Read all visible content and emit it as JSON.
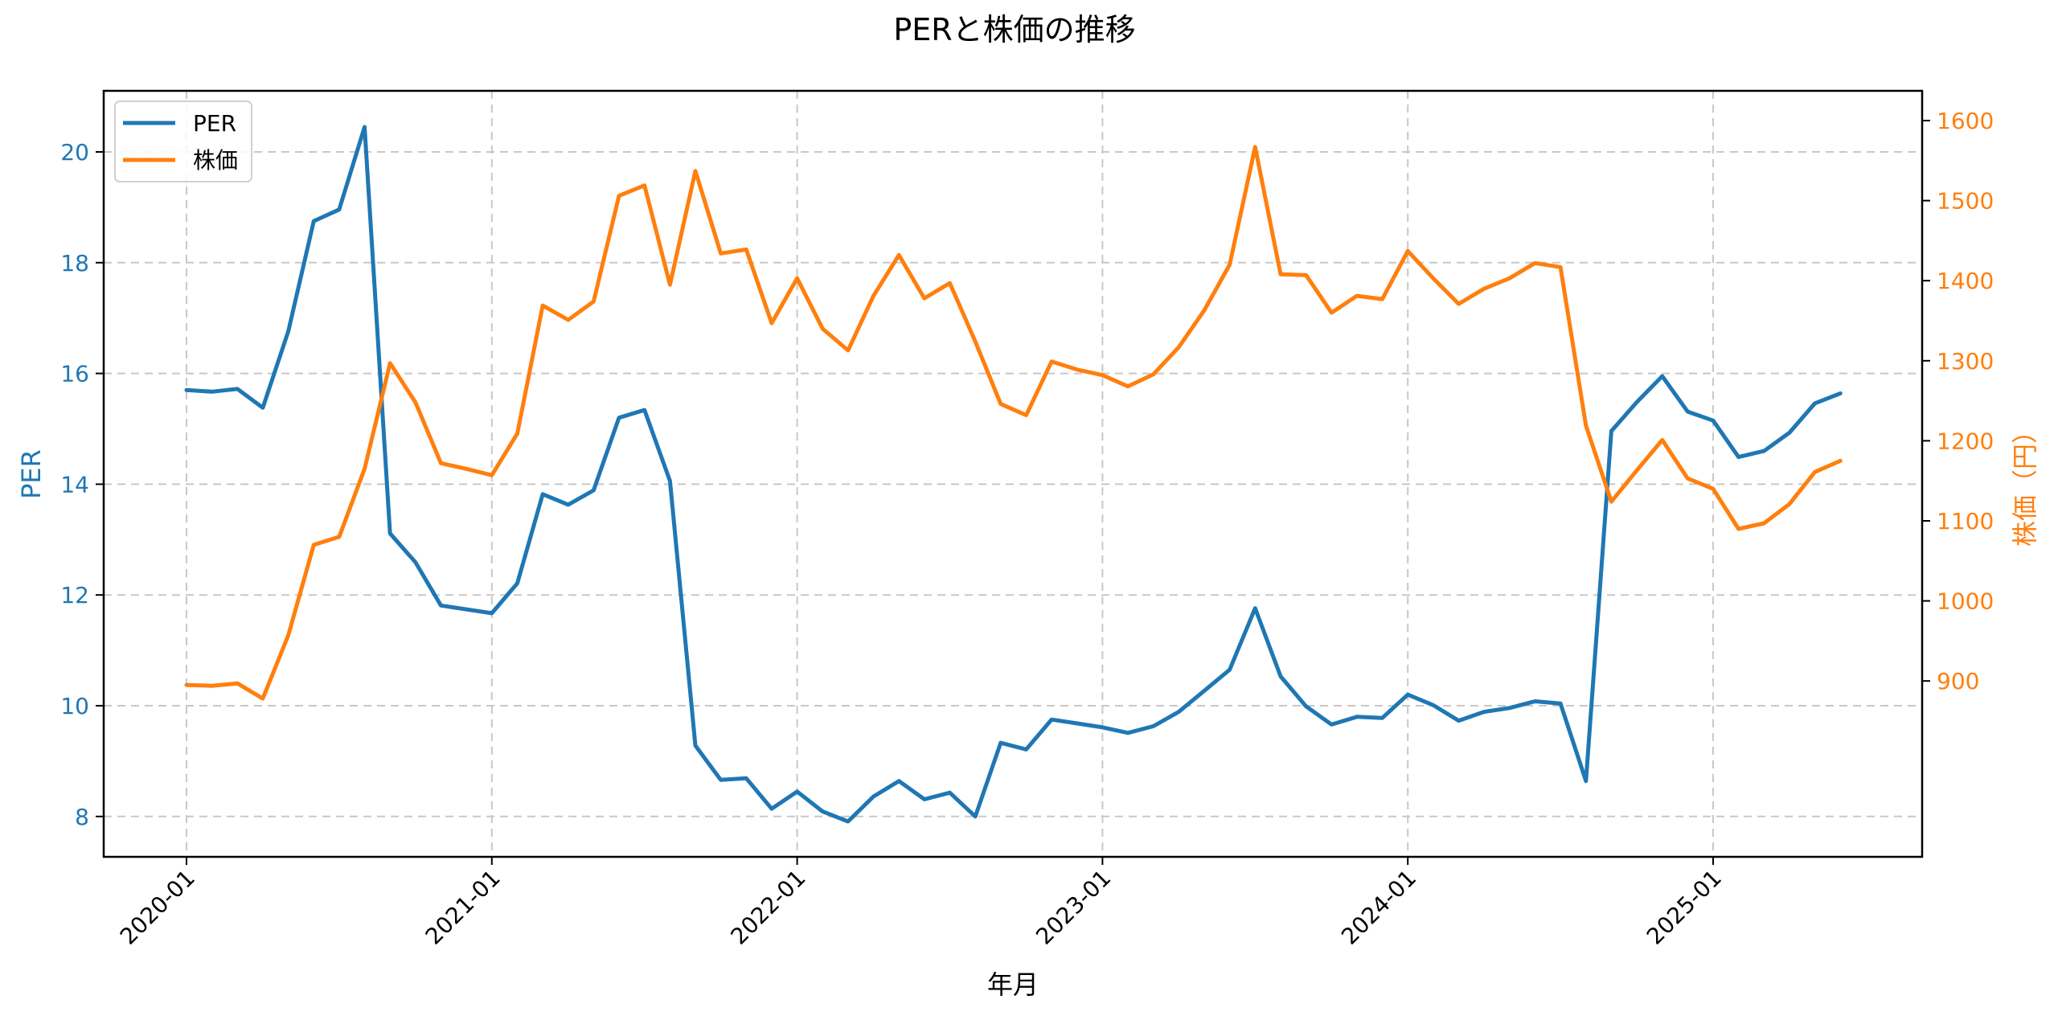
{
  "chart_data": {
    "type": "line",
    "title": "PERと株価の推移",
    "xlabel": "年月",
    "ylabel": "PER",
    "ylabel_right": "株価（円）",
    "x_tick_labels": [
      "2020-01",
      "2021-01",
      "2022-01",
      "2023-01",
      "2024-01",
      "2025-01"
    ],
    "y_ticks_left": [
      8,
      10,
      12,
      14,
      16,
      18,
      20
    ],
    "y_ticks_right": [
      900,
      1000,
      1100,
      1200,
      1300,
      1400,
      1500,
      1600
    ],
    "ylim_left": [
      7.3,
      21.1
    ],
    "ylim_right": [
      810,
      1650
    ],
    "grid": true,
    "legend_position": "upper left",
    "x": [
      "2020-01",
      "2020-02",
      "2020-03",
      "2020-04",
      "2020-05",
      "2020-06",
      "2020-07",
      "2020-08",
      "2020-09",
      "2020-10",
      "2020-11",
      "2020-12",
      "2021-01",
      "2021-02",
      "2021-03",
      "2021-04",
      "2021-05",
      "2021-06",
      "2021-07",
      "2021-08",
      "2021-09",
      "2021-10",
      "2021-11",
      "2021-12",
      "2022-01",
      "2022-02",
      "2022-03",
      "2022-04",
      "2022-05",
      "2022-06",
      "2022-07",
      "2022-08",
      "2022-09",
      "2022-10",
      "2022-11",
      "2022-12",
      "2023-01",
      "2023-02",
      "2023-03",
      "2023-04",
      "2023-05",
      "2023-06",
      "2023-07",
      "2023-08",
      "2023-09",
      "2023-10",
      "2023-11",
      "2023-12",
      "2024-01",
      "2024-02",
      "2024-03",
      "2024-04",
      "2024-05",
      "2024-06",
      "2024-07",
      "2024-08",
      "2024-09",
      "2024-10",
      "2024-11",
      "2024-12",
      "2025-01",
      "2025-02",
      "2025-03",
      "2025-04",
      "2025-05",
      "2025-06"
    ],
    "series": [
      {
        "name": "PER",
        "axis": "left",
        "color": "#1f77b4",
        "values": [
          15.7,
          15.67,
          15.72,
          15.38,
          16.76,
          18.75,
          18.96,
          20.45,
          13.11,
          12.59,
          11.81,
          11.74,
          11.67,
          12.21,
          13.82,
          13.63,
          13.89,
          15.2,
          15.34,
          14.06,
          9.28,
          8.66,
          8.69,
          8.14,
          8.45,
          8.09,
          7.91,
          8.36,
          8.64,
          8.31,
          8.43,
          8.0,
          9.33,
          9.21,
          9.75,
          9.68,
          9.61,
          9.51,
          9.63,
          9.89,
          10.27,
          10.65,
          11.76,
          10.53,
          9.99,
          9.66,
          9.8,
          9.78,
          10.2,
          10.01,
          9.73,
          9.89,
          9.96,
          10.08,
          10.04,
          8.64,
          14.96,
          15.48,
          15.95,
          15.31,
          15.15,
          14.49,
          14.6,
          14.93,
          15.46,
          15.64
        ]
      },
      {
        "name": "株価",
        "axis": "right",
        "color": "#ff7f0e",
        "values": [
          895,
          894,
          897,
          878,
          957,
          1070,
          1080,
          1165,
          1297,
          1248,
          1172,
          1165,
          1157,
          1209,
          1369,
          1351,
          1374,
          1506,
          1519,
          1395,
          1537,
          1434,
          1439,
          1347,
          1403,
          1340,
          1313,
          1381,
          1432,
          1378,
          1397,
          1324,
          1246,
          1232,
          1299,
          1289,
          1282,
          1268,
          1283,
          1317,
          1363,
          1420,
          1567,
          1408,
          1407,
          1360,
          1381,
          1377,
          1437,
          1403,
          1371,
          1390,
          1403,
          1422,
          1417,
          1219,
          1124,
          1163,
          1201,
          1153,
          1140,
          1090,
          1097,
          1121,
          1161,
          1175
        ]
      }
    ]
  },
  "legend": {
    "items": [
      {
        "label": "PER",
        "color": "#1f77b4"
      },
      {
        "label": "株価",
        "color": "#ff7f0e"
      }
    ]
  }
}
